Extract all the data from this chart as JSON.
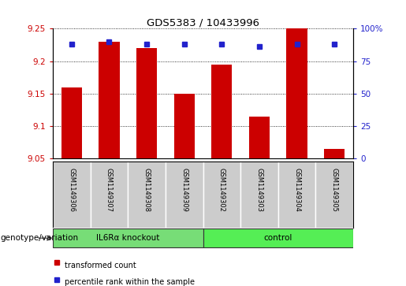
{
  "title": "GDS5383 / 10433996",
  "samples": [
    "GSM1149306",
    "GSM1149307",
    "GSM1149308",
    "GSM1149309",
    "GSM1149302",
    "GSM1149303",
    "GSM1149304",
    "GSM1149305"
  ],
  "bar_values": [
    9.16,
    9.23,
    9.22,
    9.15,
    9.195,
    9.115,
    9.25,
    9.065
  ],
  "bar_bottom": 9.05,
  "percentile_values": [
    88,
    90,
    88,
    88,
    88,
    86,
    88,
    88
  ],
  "ylim_left": [
    9.05,
    9.25
  ],
  "ylim_right": [
    0,
    100
  ],
  "yticks_left": [
    9.05,
    9.1,
    9.15,
    9.2,
    9.25
  ],
  "yticks_right": [
    0,
    25,
    50,
    75,
    100
  ],
  "ytick_labels_left": [
    "9.05",
    "9.1",
    "9.15",
    "9.2",
    "9.25"
  ],
  "ytick_labels_right": [
    "0",
    "25",
    "50",
    "75",
    "100%"
  ],
  "bar_color": "#cc0000",
  "dot_color": "#2222cc",
  "groups": [
    {
      "label": "IL6Rα knockout",
      "indices": [
        0,
        1,
        2,
        3
      ],
      "color": "#77dd77"
    },
    {
      "label": "control",
      "indices": [
        4,
        5,
        6,
        7
      ],
      "color": "#55ee55"
    }
  ],
  "genotype_label": "genotype/variation",
  "legend_items": [
    {
      "color": "#cc0000",
      "label": "transformed count"
    },
    {
      "color": "#2222cc",
      "label": "percentile rank within the sample"
    }
  ],
  "background_color": "#ffffff",
  "plot_bg_color": "#ffffff",
  "tick_label_box_color": "#cccccc",
  "grid_color": "#000000",
  "left_tick_color": "#cc0000",
  "right_tick_color": "#2222cc"
}
